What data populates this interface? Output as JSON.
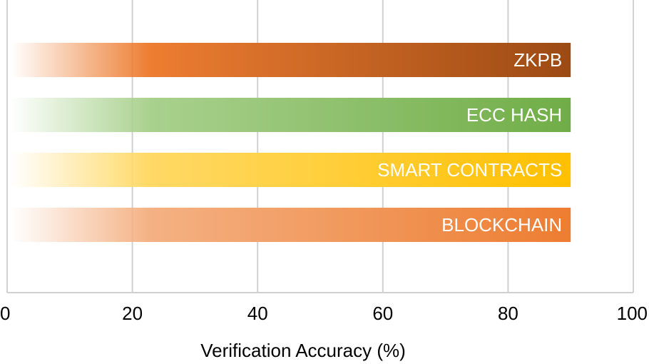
{
  "chart_data": {
    "type": "bar",
    "orientation": "horizontal",
    "title": "",
    "xlabel": "Verification Accuracy (%)",
    "ylabel": "",
    "xlim": [
      0,
      100
    ],
    "x_ticks": [
      "0",
      "20",
      "40",
      "60",
      "80",
      "100"
    ],
    "grid": true,
    "legend": "none",
    "categories": [
      "ZKPB",
      "ECC HASH",
      "SMART CONTRACTS",
      "BLOCKCHAIN"
    ],
    "values": [
      90,
      90,
      90,
      90
    ],
    "colors": [
      "#9c4a14",
      "#70ad47",
      "#ffc000",
      "#ed7d31"
    ],
    "gradient_mid_colors": [
      "#ed7d31",
      "#a9d18e",
      "#ffd966",
      "#f4b183"
    ]
  }
}
